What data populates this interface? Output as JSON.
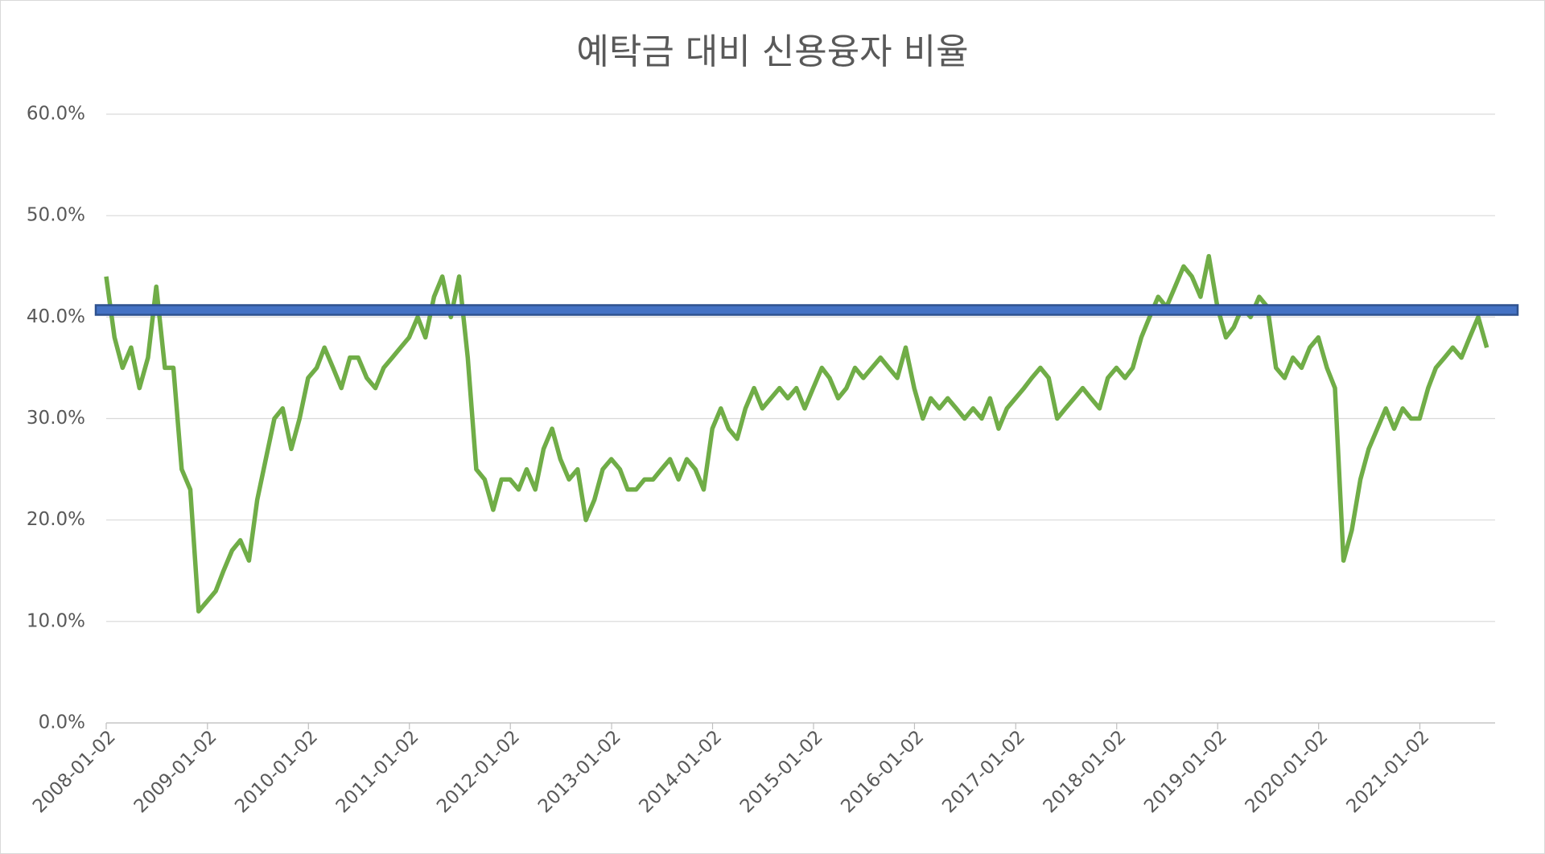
{
  "chart_data": {
    "type": "line",
    "title": "예탁금 대비 신용융자 비율",
    "x": [
      "2008-01-02",
      "2008-02-01",
      "2008-03-01",
      "2008-04-01",
      "2008-05-01",
      "2008-06-01",
      "2008-07-01",
      "2008-08-01",
      "2008-09-01",
      "2008-10-01",
      "2008-11-01",
      "2008-12-01",
      "2009-01-01",
      "2009-02-01",
      "2009-03-01",
      "2009-04-01",
      "2009-05-01",
      "2009-06-01",
      "2009-07-01",
      "2009-08-01",
      "2009-09-01",
      "2009-10-01",
      "2009-11-01",
      "2009-12-01",
      "2010-01-01",
      "2010-02-01",
      "2010-03-01",
      "2010-04-01",
      "2010-05-01",
      "2010-06-01",
      "2010-07-01",
      "2010-08-01",
      "2010-09-01",
      "2010-10-01",
      "2010-11-01",
      "2010-12-01",
      "2011-01-01",
      "2011-02-01",
      "2011-03-01",
      "2011-04-01",
      "2011-05-01",
      "2011-06-01",
      "2011-07-01",
      "2011-08-01",
      "2011-09-01",
      "2011-10-01",
      "2011-11-01",
      "2011-12-01",
      "2012-01-01",
      "2012-02-01",
      "2012-03-01",
      "2012-04-01",
      "2012-05-01",
      "2012-06-01",
      "2012-07-01",
      "2012-08-01",
      "2012-09-01",
      "2012-10-01",
      "2012-11-01",
      "2012-12-01",
      "2013-01-01",
      "2013-02-01",
      "2013-03-01",
      "2013-04-01",
      "2013-05-01",
      "2013-06-01",
      "2013-07-01",
      "2013-08-01",
      "2013-09-01",
      "2013-10-01",
      "2013-11-01",
      "2013-12-01",
      "2014-01-01",
      "2014-02-01",
      "2014-03-01",
      "2014-04-01",
      "2014-05-01",
      "2014-06-01",
      "2014-07-01",
      "2014-08-01",
      "2014-09-01",
      "2014-10-01",
      "2014-11-01",
      "2014-12-01",
      "2015-01-01",
      "2015-02-01",
      "2015-03-01",
      "2015-04-01",
      "2015-05-01",
      "2015-06-01",
      "2015-07-01",
      "2015-08-01",
      "2015-09-01",
      "2015-10-01",
      "2015-11-01",
      "2015-12-01",
      "2016-01-01",
      "2016-02-01",
      "2016-03-01",
      "2016-04-01",
      "2016-05-01",
      "2016-06-01",
      "2016-07-01",
      "2016-08-01",
      "2016-09-01",
      "2016-10-01",
      "2016-11-01",
      "2016-12-01",
      "2017-01-01",
      "2017-02-01",
      "2017-03-01",
      "2017-04-01",
      "2017-05-01",
      "2017-06-01",
      "2017-07-01",
      "2017-08-01",
      "2017-09-01",
      "2017-10-01",
      "2017-11-01",
      "2017-12-01",
      "2018-01-01",
      "2018-02-01",
      "2018-03-01",
      "2018-04-01",
      "2018-05-01",
      "2018-06-01",
      "2018-07-01",
      "2018-08-01",
      "2018-09-01",
      "2018-10-01",
      "2018-11-01",
      "2018-12-01",
      "2019-01-01",
      "2019-02-01",
      "2019-03-01",
      "2019-04-01",
      "2019-05-01",
      "2019-06-01",
      "2019-07-01",
      "2019-08-01",
      "2019-09-01",
      "2019-10-01",
      "2019-11-01",
      "2019-12-01",
      "2020-01-01",
      "2020-02-01",
      "2020-03-01",
      "2020-04-01",
      "2020-05-01",
      "2020-06-01",
      "2020-07-01",
      "2020-08-01",
      "2020-09-01",
      "2020-10-01",
      "2020-11-01",
      "2020-12-01",
      "2021-01-01",
      "2021-02-01",
      "2021-03-01",
      "2021-04-01",
      "2021-05-01",
      "2021-06-01",
      "2021-07-01",
      "2021-08-01",
      "2021-09-01"
    ],
    "series": [
      {
        "name": "예탁금 대비 신용융자 비율",
        "color": "#70ad47",
        "values": [
          44,
          38,
          35,
          37,
          33,
          36,
          43,
          35,
          35,
          25,
          23,
          11,
          12,
          13,
          15,
          17,
          18,
          16,
          22,
          26,
          30,
          31,
          27,
          30,
          34,
          35,
          37,
          35,
          33,
          36,
          36,
          34,
          33,
          35,
          36,
          37,
          38,
          40,
          38,
          42,
          44,
          40,
          44,
          36,
          25,
          24,
          21,
          24,
          24,
          23,
          25,
          23,
          27,
          29,
          26,
          24,
          25,
          20,
          22,
          25,
          26,
          25,
          23,
          23,
          24,
          24,
          25,
          26,
          24,
          26,
          25,
          23,
          29,
          31,
          29,
          28,
          31,
          33,
          31,
          32,
          33,
          32,
          33,
          31,
          33,
          35,
          34,
          32,
          33,
          35,
          34,
          35,
          36,
          35,
          34,
          37,
          33,
          30,
          32,
          31,
          32,
          31,
          30,
          31,
          30,
          32,
          29,
          31,
          32,
          33,
          34,
          35,
          34,
          30,
          31,
          32,
          33,
          32,
          31,
          34,
          35,
          34,
          35,
          38,
          40,
          42,
          41,
          43,
          45,
          44,
          42,
          46,
          41,
          38,
          39,
          41,
          40,
          42,
          41,
          35,
          34,
          36,
          35,
          37,
          38,
          35,
          33,
          16,
          19,
          24,
          27,
          29,
          31,
          29,
          31,
          30,
          30,
          33,
          35,
          36,
          37,
          36,
          38,
          40,
          37
        ]
      }
    ],
    "reference_line": {
      "value": 40.7,
      "color": "#4472c4"
    },
    "xlim": [
      "2008-01-02",
      "2021-10-01"
    ],
    "xticks": [
      "2008-01-02",
      "2009-01-02",
      "2010-01-02",
      "2011-01-02",
      "2012-01-02",
      "2013-01-02",
      "2014-01-02",
      "2015-01-02",
      "2016-01-02",
      "2017-01-02",
      "2018-01-02",
      "2019-01-02",
      "2020-01-02",
      "2021-01-02"
    ],
    "ylim": [
      0,
      60
    ],
    "yticks": [
      {
        "value": 0,
        "label": "0.0%"
      },
      {
        "value": 10,
        "label": "10.0%"
      },
      {
        "value": 20,
        "label": "20.0%"
      },
      {
        "value": 30,
        "label": "30.0%"
      },
      {
        "value": 40,
        "label": "40.0%"
      },
      {
        "value": 50,
        "label": "50.0%"
      },
      {
        "value": 60,
        "label": "60.0%"
      }
    ],
    "grid": true
  }
}
